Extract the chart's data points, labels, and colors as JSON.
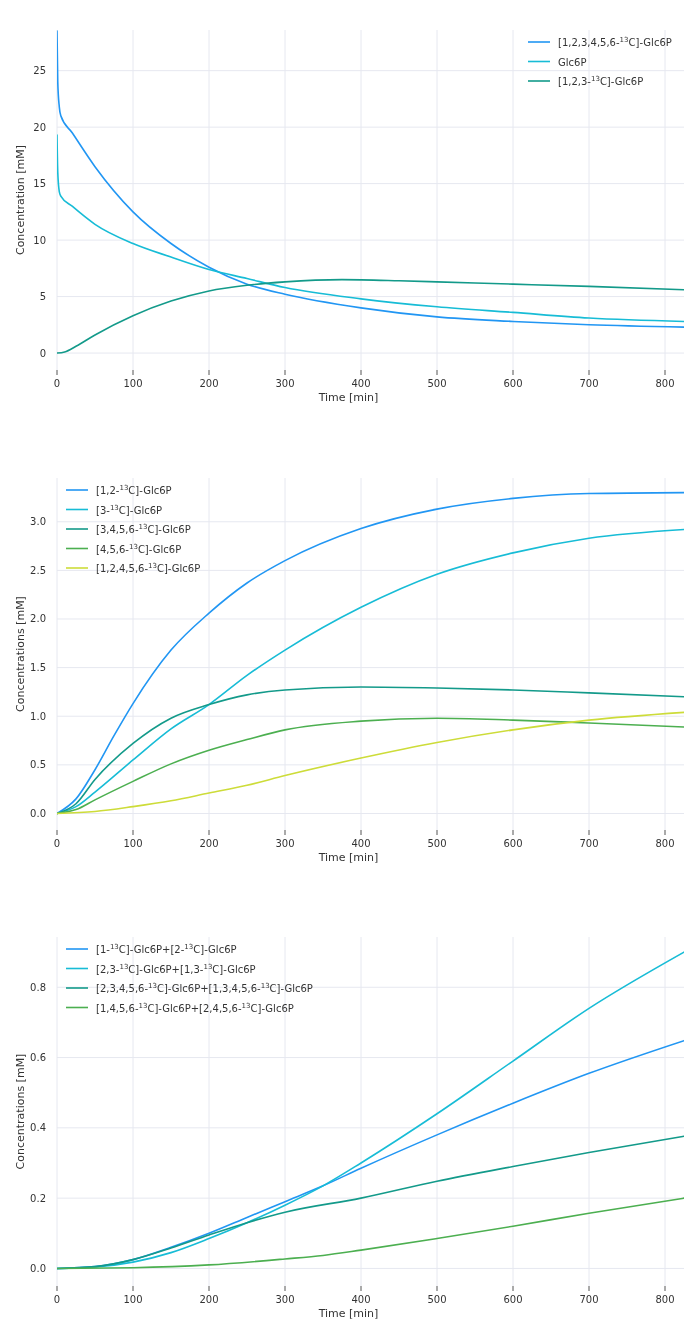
{
  "chart_data": [
    {
      "type": "line",
      "xlabel": "Time [min]",
      "ylabel": "Concentration [mM]",
      "xlim": [
        0,
        825
      ],
      "xticks": [
        0,
        100,
        200,
        300,
        400,
        500,
        600,
        700,
        800
      ],
      "ylim": [
        -1.5,
        28.6
      ],
      "yticks": [
        0,
        5,
        10,
        15,
        20,
        25
      ],
      "grid": true,
      "legend": "top right",
      "series": [
        {
          "name": "[1,2,3,4,5,6-$^{13}$C]-Glc6P",
          "color": "#2196f3",
          "x": [
            0,
            1,
            3,
            5,
            20,
            50,
            100,
            150,
            200,
            250,
            300,
            400,
            500,
            600,
            700,
            825
          ],
          "values": [
            28.5,
            24,
            21.8,
            21,
            19.5,
            16.5,
            12.5,
            9.7,
            7.6,
            6.1,
            5.2,
            4.0,
            3.2,
            2.8,
            2.5,
            2.3
          ]
        },
        {
          "name": "Glc6P",
          "color": "#17bcd6",
          "x": [
            0,
            1,
            3,
            5,
            20,
            50,
            100,
            150,
            200,
            250,
            300,
            400,
            500,
            600,
            700,
            825
          ],
          "values": [
            19.3,
            16,
            14.3,
            13.9,
            13,
            11.4,
            9.7,
            8.5,
            7.4,
            6.6,
            5.8,
            4.8,
            4.1,
            3.6,
            3.1,
            2.8
          ]
        },
        {
          "name": "[1,2,3-$^{13}$C]-Glc6P",
          "color": "#139a8a",
          "x": [
            0,
            10,
            25,
            50,
            100,
            150,
            200,
            250,
            300,
            375,
            450,
            500,
            600,
            700,
            825
          ],
          "values": [
            0,
            0.1,
            0.6,
            1.6,
            3.3,
            4.6,
            5.5,
            6.0,
            6.3,
            6.5,
            6.4,
            6.3,
            6.1,
            5.9,
            5.6
          ]
        }
      ]
    },
    {
      "type": "line",
      "xlabel": "Time [min]",
      "ylabel": "Concentrations [mM]",
      "xlim": [
        0,
        825
      ],
      "xticks": [
        0,
        100,
        200,
        300,
        400,
        500,
        600,
        700,
        800
      ],
      "ylim": [
        -0.17,
        3.45
      ],
      "yticks": [
        {
          "value": 0,
          "label": "0.0"
        },
        {
          "value": 0.5,
          "label": "0.5"
        },
        {
          "value": 1,
          "label": "1.0"
        },
        {
          "value": 1.5,
          "label": "1.5"
        },
        {
          "value": 2,
          "label": "2.0"
        },
        {
          "value": 2.5,
          "label": "2.5"
        },
        {
          "value": 3,
          "label": "3.0"
        }
      ],
      "grid": true,
      "legend": "top left",
      "series": [
        {
          "name": "[1,2-$^{13}$C]-Glc6P",
          "color": "#2196f3",
          "x": [
            0,
            25,
            50,
            75,
            100,
            150,
            200,
            250,
            300,
            400,
            500,
            600,
            700,
            825
          ],
          "values": [
            0,
            0.15,
            0.45,
            0.8,
            1.13,
            1.68,
            2.06,
            2.37,
            2.6,
            2.93,
            3.13,
            3.24,
            3.29,
            3.3
          ]
        },
        {
          "name": "[3-$^{13}$C]-Glc6P",
          "color": "#17bcd6",
          "x": [
            0,
            25,
            50,
            100,
            150,
            200,
            250,
            300,
            400,
            500,
            600,
            700,
            825
          ],
          "values": [
            0,
            0.07,
            0.22,
            0.55,
            0.87,
            1.12,
            1.42,
            1.68,
            2.12,
            2.46,
            2.68,
            2.83,
            2.92
          ]
        },
        {
          "name": "[3,4,5,6-$^{13}$C]-Glc6P",
          "color": "#139a8a",
          "x": [
            0,
            25,
            50,
            100,
            150,
            200,
            250,
            300,
            400,
            500,
            600,
            700,
            825
          ],
          "values": [
            0,
            0.1,
            0.35,
            0.72,
            0.98,
            1.12,
            1.22,
            1.27,
            1.3,
            1.29,
            1.27,
            1.24,
            1.2
          ]
        },
        {
          "name": "[4,5,6-$^{13}$C]-Glc6P",
          "color": "#4caf50",
          "x": [
            0,
            25,
            50,
            100,
            150,
            200,
            250,
            300,
            400,
            500,
            600,
            700,
            825
          ],
          "values": [
            0,
            0.04,
            0.14,
            0.33,
            0.51,
            0.65,
            0.76,
            0.86,
            0.95,
            0.98,
            0.96,
            0.93,
            0.89
          ]
        },
        {
          "name": "[1,2,4,5,6-$^{13}$C]-Glc6P",
          "color": "#cddc39",
          "x": [
            0,
            50,
            100,
            150,
            200,
            250,
            300,
            400,
            500,
            600,
            700,
            825
          ],
          "values": [
            0,
            0.02,
            0.07,
            0.13,
            0.21,
            0.29,
            0.39,
            0.57,
            0.73,
            0.86,
            0.96,
            1.04
          ]
        }
      ]
    },
    {
      "type": "line",
      "xlabel": "Time [min]",
      "ylabel": "Concentrations [mM]",
      "xlim": [
        0,
        825
      ],
      "xticks": [
        0,
        100,
        200,
        300,
        400,
        500,
        600,
        700,
        800
      ],
      "ylim": [
        -0.05,
        0.943
      ],
      "yticks": [
        {
          "value": 0,
          "label": "0.0"
        },
        {
          "value": 0.2,
          "label": "0.2"
        },
        {
          "value": 0.4,
          "label": "0.4"
        },
        {
          "value": 0.6,
          "label": "0.6"
        },
        {
          "value": 0.8,
          "label": "0.8"
        }
      ],
      "grid": true,
      "legend": "top left",
      "series": [
        {
          "name": "[1-$^{13}$C]-Glc6P+[2-$^{13}$C]-Glc6P",
          "color": "#2196f3",
          "x": [
            0,
            50,
            100,
            150,
            200,
            250,
            300,
            350,
            400,
            500,
            600,
            700,
            825
          ],
          "values": [
            0,
            0.005,
            0.025,
            0.06,
            0.1,
            0.145,
            0.19,
            0.235,
            0.285,
            0.38,
            0.47,
            0.555,
            0.648
          ]
        },
        {
          "name": "[2,3-$^{13}$C]-Glc6P+[1,3-$^{13}$C]-Glc6P",
          "color": "#17bcd6",
          "x": [
            0,
            50,
            100,
            150,
            200,
            250,
            300,
            350,
            400,
            500,
            600,
            700,
            825
          ],
          "values": [
            0,
            0.004,
            0.018,
            0.045,
            0.085,
            0.13,
            0.18,
            0.235,
            0.3,
            0.44,
            0.59,
            0.74,
            0.9
          ]
        },
        {
          "name": "[2,3,4,5,6-$^{13}$C]-Glc6P+[1,3,4,5,6-$^{13}$C]-Glc6P",
          "color": "#139a8a",
          "x": [
            0,
            50,
            100,
            150,
            200,
            250,
            300,
            400,
            500,
            600,
            700,
            825
          ],
          "values": [
            0,
            0.005,
            0.025,
            0.058,
            0.095,
            0.13,
            0.16,
            0.2,
            0.248,
            0.29,
            0.33,
            0.376
          ]
        },
        {
          "name": "[1,4,5,6-$^{13}$C]-Glc6P+[2,4,5,6-$^{13}$C]-Glc6P",
          "color": "#4caf50",
          "x": [
            0,
            100,
            200,
            300,
            350,
            400,
            500,
            600,
            700,
            825
          ],
          "values": [
            0,
            0.002,
            0.01,
            0.027,
            0.037,
            0.052,
            0.085,
            0.12,
            0.157,
            0.2
          ]
        }
      ]
    }
  ]
}
